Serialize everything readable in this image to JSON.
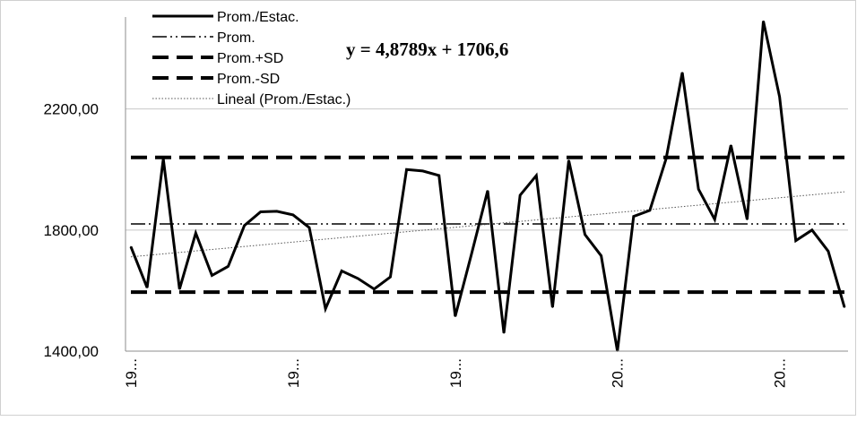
{
  "chart_data": {
    "type": "line",
    "title": "",
    "xlabel": "",
    "ylabel": "",
    "ylim": [
      1400,
      2480
    ],
    "yticks": [
      "1400,00",
      "1800,00",
      "2200,00"
    ],
    "ytick_values": [
      1400,
      1800,
      2200
    ],
    "xtick_labels": [
      "19...",
      "19...",
      "19...",
      "20...",
      "20..."
    ],
    "xtick_indices": [
      0,
      10,
      20,
      30,
      40
    ],
    "grid": "horizontal",
    "legend_position": "top-left",
    "equation": "y = 4,8789x + 1706,6",
    "series": [
      {
        "name": "Prom./Estac.",
        "style": "solid",
        "color": "#000000",
        "values": [
          1745,
          1610,
          2035,
          1605,
          1790,
          1650,
          1680,
          1815,
          1860,
          1862,
          1850,
          1808,
          1540,
          1665,
          1640,
          1605,
          1645,
          2000,
          1995,
          1980,
          1515,
          1720,
          1930,
          1460,
          1915,
          1980,
          1545,
          2030,
          1785,
          1715,
          1400,
          1845,
          1865,
          2035,
          2320,
          1935,
          1835,
          2080,
          1835,
          2490,
          2240,
          1765,
          1800,
          1730,
          1545
        ]
      },
      {
        "name": "Prom.",
        "style": "dash-dot-dot",
        "color": "#000000",
        "constant": 1820
      },
      {
        "name": "Prom.+SD",
        "style": "dashed",
        "color": "#000000",
        "constant": 2040
      },
      {
        "name": "Prom.-SD",
        "style": "dashed",
        "color": "#000000",
        "constant": 1595
      },
      {
        "name": "Lineal (Prom./Estac.)",
        "style": "dotted",
        "color": "#555555",
        "slope": 4.8789,
        "intercept": 1706.6
      }
    ]
  }
}
